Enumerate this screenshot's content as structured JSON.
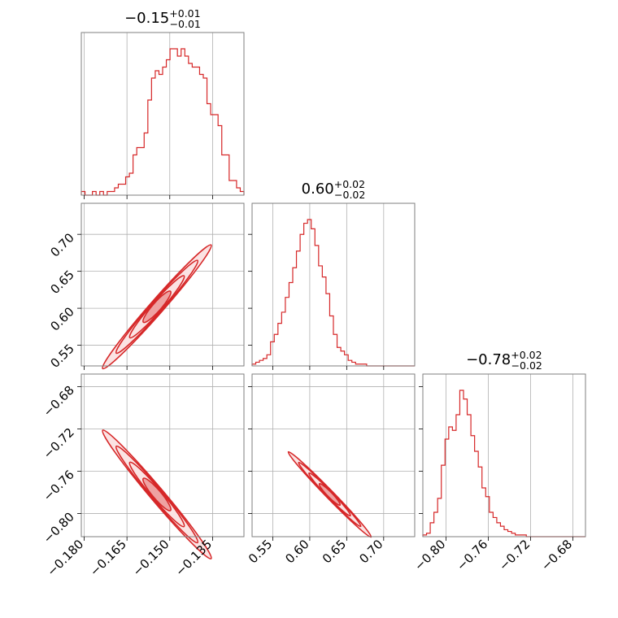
{
  "chart_data": {
    "type": "corner",
    "color": "#d62728",
    "grid": true,
    "parameters": [
      {
        "title_value": "−0.15",
        "title_plus": "+0.01",
        "title_minus": "−0.01",
        "range": [
          -0.181,
          -0.124
        ],
        "ticks": [
          -0.18,
          -0.165,
          -0.15,
          -0.135
        ],
        "tick_labels": [
          "−0.180",
          "−0.165",
          "−0.150",
          "−0.135"
        ],
        "hist": [
          1,
          0,
          0,
          1,
          0,
          1,
          0,
          1,
          1,
          2,
          3,
          3,
          5,
          6,
          11,
          13,
          13,
          17,
          26,
          32,
          34,
          33,
          35,
          37,
          40,
          40,
          38,
          40,
          38,
          36,
          35,
          35,
          33,
          32,
          25,
          22,
          22,
          19,
          11,
          11,
          4,
          4,
          2,
          1
        ]
      },
      {
        "title_value": "0.60",
        "title_plus": "+0.02",
        "title_minus": "−0.02",
        "range": [
          0.522,
          0.742
        ],
        "ticks": [
          0.55,
          0.6,
          0.65,
          0.7
        ],
        "tick_labels": [
          "0.55",
          "0.60",
          "0.65",
          "0.70"
        ],
        "hist": [
          1,
          2,
          3,
          4,
          6,
          13,
          17,
          23,
          29,
          37,
          45,
          53,
          62,
          71,
          77,
          79,
          74,
          65,
          54,
          48,
          39,
          27,
          17,
          10,
          8,
          6,
          3,
          2,
          1,
          1,
          1,
          0,
          0,
          0,
          0,
          0,
          0,
          0,
          0,
          0,
          0,
          0,
          0,
          0
        ]
      },
      {
        "title_value": "−0.78",
        "title_plus": "+0.02",
        "title_minus": "−0.02",
        "range": [
          -0.822,
          -0.668
        ],
        "ticks": [
          -0.8,
          -0.76,
          -0.72,
          -0.68
        ],
        "tick_labels": [
          "−0.80",
          "−0.76",
          "−0.72",
          "−0.68"
        ],
        "hist": [
          1,
          2,
          8,
          14,
          22,
          41,
          56,
          63,
          61,
          70,
          84,
          79,
          70,
          58,
          49,
          40,
          28,
          23,
          14,
          11,
          8,
          6,
          4,
          3,
          2,
          1,
          1,
          1,
          0,
          0,
          0,
          0,
          0,
          0,
          0,
          0,
          0,
          0,
          0,
          0,
          0,
          0,
          0,
          0
        ]
      }
    ],
    "pairs": [
      {
        "x": 0,
        "y": 1,
        "slope": 4.4,
        "spread": 0.006
      },
      {
        "x": 0,
        "y": 2,
        "slope": -3.2,
        "spread": 0.005
      },
      {
        "x": 1,
        "y": 2,
        "slope": -0.72,
        "spread": 0.0015
      }
    ]
  }
}
